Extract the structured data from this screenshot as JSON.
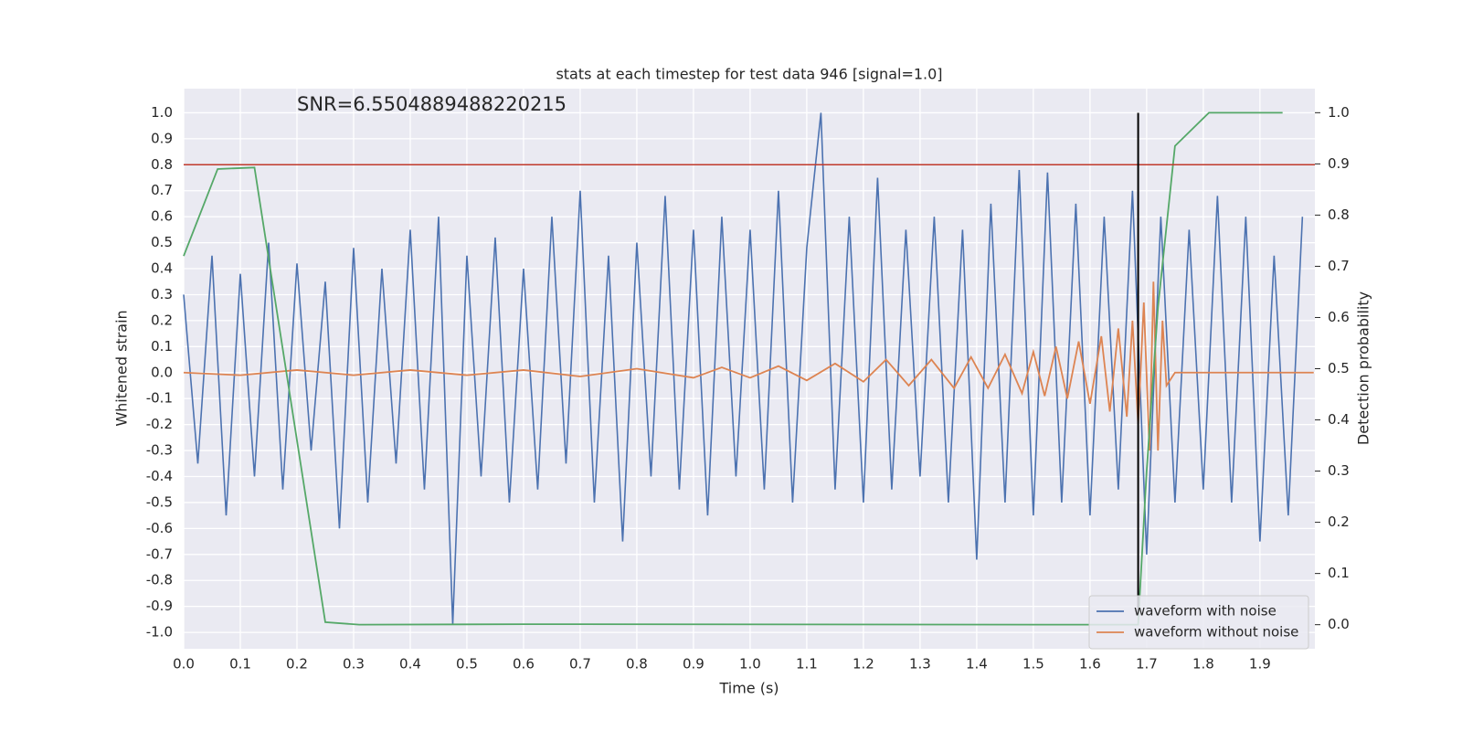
{
  "chart_data": {
    "type": "line",
    "title": "stats at each timestep for test data 946 [signal=1.0]",
    "annotation": "SNR=6.5504889488220215",
    "annotation_x": 0.2,
    "annotation_y": 1.03,
    "xlabel": "Time (s)",
    "ylabel": "Whitened strain",
    "y2label": "Detection probability",
    "xlim": [
      0,
      1.997
    ],
    "ylim": [
      -1.063,
      1.093
    ],
    "y2lim": [
      -0.047,
      1.047
    ],
    "xticks": [
      {
        "value": 0,
        "label": "0.0"
      },
      0.1,
      0.2,
      0.3,
      0.4,
      0.5,
      0.6,
      0.7,
      0.8,
      0.9,
      {
        "value": 1,
        "label": "1.0"
      },
      1.1,
      1.2,
      1.3,
      1.4,
      1.5,
      1.6,
      1.7,
      1.8,
      1.9
    ],
    "yticks": [
      {
        "value": -1,
        "label": "-1.0"
      },
      -0.9,
      -0.8,
      -0.7,
      -0.6,
      -0.5,
      -0.4,
      -0.3,
      -0.2,
      -0.1,
      {
        "value": 0,
        "label": "0.0"
      },
      0.1,
      0.2,
      0.3,
      0.4,
      0.5,
      0.6,
      0.7,
      0.8,
      0.9,
      {
        "value": 1,
        "label": "1.0"
      }
    ],
    "y2ticks": [
      {
        "value": 0,
        "label": "0.0"
      },
      0.1,
      0.2,
      0.3,
      0.4,
      0.5,
      0.6,
      0.7,
      0.8,
      0.9,
      {
        "value": 1,
        "label": "1.0"
      }
    ],
    "grid": true,
    "legend": "lower right",
    "hline": {
      "y": 0.8,
      "color": "#c0392b"
    },
    "vline": {
      "x": 1.685,
      "ymin": -0.93,
      "ymax": 1.0,
      "color": "#000000"
    },
    "series": [
      {
        "name": "waveform with noise",
        "color": "#4c72b0",
        "x": [
          0,
          0.025,
          0.05,
          0.075,
          0.1,
          0.125,
          0.15,
          0.175,
          0.2,
          0.225,
          0.25,
          0.275,
          0.3,
          0.325,
          0.35,
          0.375,
          0.4,
          0.425,
          0.45,
          0.475,
          0.5,
          0.525,
          0.55,
          0.575,
          0.6,
          0.625,
          0.65,
          0.675,
          0.7,
          0.725,
          0.75,
          0.775,
          0.8,
          0.825,
          0.85,
          0.875,
          0.9,
          0.925,
          0.95,
          0.975,
          1.0,
          1.025,
          1.05,
          1.075,
          1.1,
          1.125,
          1.15,
          1.175,
          1.2,
          1.225,
          1.25,
          1.275,
          1.3,
          1.325,
          1.35,
          1.375,
          1.4,
          1.425,
          1.45,
          1.475,
          1.5,
          1.525,
          1.55,
          1.575,
          1.6,
          1.625,
          1.65,
          1.675,
          1.7,
          1.725,
          1.75,
          1.775,
          1.8,
          1.825,
          1.85,
          1.875,
          1.9,
          1.925,
          1.95,
          1.975
        ],
        "values": [
          0.3,
          -0.35,
          0.45,
          -0.55,
          0.38,
          -0.4,
          0.5,
          -0.45,
          0.42,
          -0.3,
          0.35,
          -0.6,
          0.48,
          -0.5,
          0.4,
          -0.35,
          0.55,
          -0.45,
          0.6,
          -0.97,
          0.45,
          -0.4,
          0.52,
          -0.5,
          0.4,
          -0.45,
          0.6,
          -0.35,
          0.7,
          -0.5,
          0.45,
          -0.65,
          0.5,
          -0.4,
          0.68,
          -0.45,
          0.55,
          -0.55,
          0.6,
          -0.4,
          0.55,
          -0.45,
          0.7,
          -0.5,
          0.48,
          1.0,
          -0.45,
          0.6,
          -0.5,
          0.75,
          -0.45,
          0.55,
          -0.4,
          0.6,
          -0.5,
          0.55,
          -0.72,
          0.65,
          -0.5,
          0.78,
          -0.55,
          0.77,
          -0.5,
          0.65,
          -0.55,
          0.6,
          -0.45,
          0.7,
          -0.7,
          0.6,
          -0.5,
          0.55,
          -0.45,
          0.68,
          -0.5,
          0.6,
          -0.65,
          0.45,
          -0.55,
          0.6
        ]
      },
      {
        "name": "waveform without noise",
        "color": "#dd8452",
        "x": [
          0,
          0.1,
          0.2,
          0.3,
          0.4,
          0.5,
          0.6,
          0.7,
          0.8,
          0.9,
          0.95,
          1.0,
          1.05,
          1.1,
          1.15,
          1.2,
          1.24,
          1.28,
          1.32,
          1.36,
          1.39,
          1.42,
          1.45,
          1.48,
          1.5,
          1.52,
          1.54,
          1.56,
          1.58,
          1.6,
          1.62,
          1.635,
          1.65,
          1.665,
          1.675,
          1.685,
          1.695,
          1.705,
          1.712,
          1.72,
          1.728,
          1.735,
          1.75,
          1.995
        ],
        "values": [
          0,
          -0.01,
          0.01,
          -0.01,
          0.01,
          -0.01,
          0.01,
          -0.015,
          0.015,
          -0.02,
          0.02,
          -0.02,
          0.025,
          -0.03,
          0.035,
          -0.035,
          0.05,
          -0.05,
          0.05,
          -0.06,
          0.06,
          -0.06,
          0.07,
          -0.08,
          0.08,
          -0.09,
          0.1,
          -0.1,
          0.12,
          -0.12,
          0.14,
          -0.15,
          0.17,
          -0.17,
          0.2,
          -0.2,
          0.27,
          -0.3,
          0.35,
          -0.3,
          0.2,
          -0.05,
          0,
          0
        ]
      },
      {
        "color": "#55a868",
        "axis": "y2",
        "x": [
          0,
          0.06,
          0.125,
          0.25,
          0.31,
          0.6,
          1.6,
          1.685,
          1.7,
          1.72,
          1.75,
          1.81,
          1.94
        ],
        "values": [
          0.72,
          0.89,
          0.893,
          0.005,
          0.0,
          0.001,
          0.0,
          0.0,
          0.3,
          0.62,
          0.935,
          1.0,
          1.0
        ]
      }
    ]
  }
}
